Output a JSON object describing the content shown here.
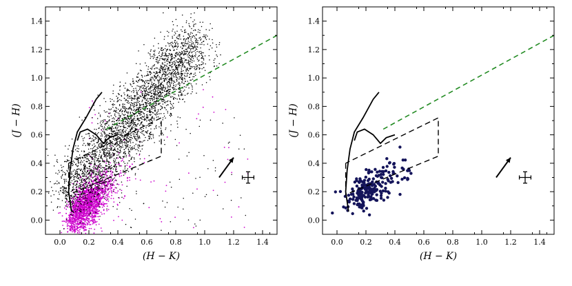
{
  "chart_data": [
    {
      "type": "scatter",
      "panel": "left",
      "xlabel": "(H − K)",
      "ylabel": "(J − H)",
      "xlim": [
        -0.1,
        1.5
      ],
      "ylim": [
        -0.1,
        1.5
      ],
      "xticks": [
        0.0,
        0.2,
        0.4,
        0.6,
        0.8,
        1.0,
        1.2,
        1.4
      ],
      "yticks": [
        0.0,
        0.2,
        0.4,
        0.6,
        0.8,
        1.0,
        1.2,
        1.4
      ],
      "xtick_labels": [
        "0.0",
        "0.2",
        "0.4",
        "0.6",
        "0.8",
        "1.0",
        "1.2",
        "1.4"
      ],
      "ytick_labels": [
        "0.0",
        "0.2",
        "0.4",
        "0.6",
        "0.8",
        "1.0",
        "1.2",
        "1.4"
      ],
      "grid": false,
      "colors": {
        "field_stars": "#000000",
        "magenta_stars": "#cc00cc",
        "reddening_line": "#228b22"
      },
      "dwarf_locus": [
        [
          0.08,
          0.06
        ],
        [
          0.06,
          0.2
        ],
        [
          0.07,
          0.35
        ],
        [
          0.09,
          0.5
        ],
        [
          0.12,
          0.62
        ],
        [
          0.18,
          0.72
        ],
        [
          0.25,
          0.85
        ],
        [
          0.29,
          0.9
        ]
      ],
      "giant_branch": [
        [
          0.12,
          0.56
        ],
        [
          0.14,
          0.62
        ],
        [
          0.19,
          0.64
        ],
        [
          0.25,
          0.6
        ],
        [
          0.3,
          0.54
        ],
        [
          0.34,
          0.58
        ],
        [
          0.4,
          0.6
        ]
      ],
      "ctts_box": [
        [
          0.06,
          0.4
        ],
        [
          0.06,
          0.18
        ],
        [
          0.7,
          0.45
        ],
        [
          0.7,
          0.72
        ],
        [
          0.06,
          0.4
        ]
      ],
      "reddening_line": [
        [
          0.32,
          0.64
        ],
        [
          1.5,
          1.3
        ]
      ],
      "reddening_vector": {
        "start": [
          1.1,
          0.3
        ],
        "end": [
          1.2,
          0.44
        ]
      },
      "error_bar": {
        "x": 1.3,
        "y": 0.3,
        "xerr": 0.04,
        "yerr": 0.04
      },
      "black_points_count": 3500,
      "magenta_points_count": 1900
    },
    {
      "type": "scatter",
      "panel": "right",
      "xlabel": "(H − K)",
      "ylabel": "(J − H)",
      "xlim": [
        -0.1,
        1.5
      ],
      "ylim": [
        -0.1,
        1.5
      ],
      "xticks": [
        0.0,
        0.2,
        0.4,
        0.6,
        0.8,
        1.0,
        1.2,
        1.4
      ],
      "yticks": [
        0.0,
        0.2,
        0.4,
        0.6,
        0.8,
        1.0,
        1.2,
        1.4
      ],
      "xtick_labels": [
        "0.0",
        "0.2",
        "0.4",
        "0.6",
        "0.8",
        "1.0",
        "1.2",
        "1.4"
      ],
      "ytick_labels": [
        "0.0",
        "0.2",
        "0.4",
        "0.6",
        "0.8",
        "1.0",
        "1.2",
        "1.4"
      ],
      "grid": false,
      "colors": {
        "ysos": "#14145a",
        "reddening_line": "#228b22"
      },
      "dwarf_locus": [
        [
          0.08,
          0.06
        ],
        [
          0.06,
          0.2
        ],
        [
          0.07,
          0.35
        ],
        [
          0.09,
          0.5
        ],
        [
          0.12,
          0.62
        ],
        [
          0.18,
          0.72
        ],
        [
          0.25,
          0.85
        ],
        [
          0.29,
          0.9
        ]
      ],
      "giant_branch": [
        [
          0.12,
          0.56
        ],
        [
          0.14,
          0.62
        ],
        [
          0.19,
          0.64
        ],
        [
          0.25,
          0.6
        ],
        [
          0.3,
          0.54
        ],
        [
          0.34,
          0.58
        ],
        [
          0.4,
          0.6
        ]
      ],
      "ctts_box": [
        [
          0.06,
          0.4
        ],
        [
          0.06,
          0.18
        ],
        [
          0.7,
          0.45
        ],
        [
          0.7,
          0.72
        ],
        [
          0.06,
          0.4
        ]
      ],
      "reddening_line": [
        [
          0.32,
          0.64
        ],
        [
          1.5,
          1.3
        ]
      ],
      "reddening_vector": {
        "start": [
          1.1,
          0.3
        ],
        "end": [
          1.2,
          0.44
        ]
      },
      "error_bar": {
        "x": 1.3,
        "y": 0.3,
        "xerr": 0.04,
        "yerr": 0.04
      },
      "yso_points_count": 230
    }
  ]
}
